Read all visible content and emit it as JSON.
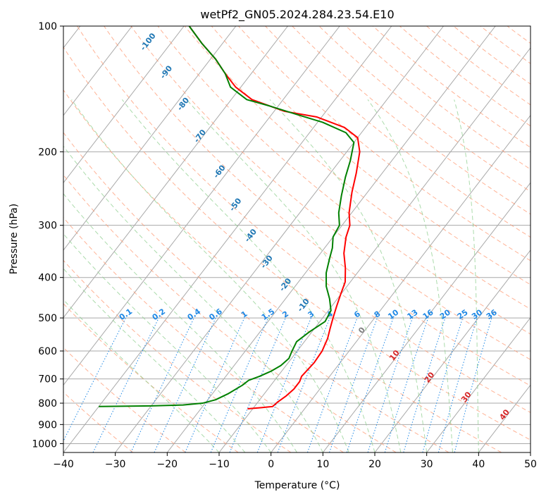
{
  "chart_data": {
    "type": "line",
    "title": "wetPf2_GN05.2024.284.23.54.E10",
    "xlabel": "Temperature (°C)",
    "ylabel": "Pressure (hPa)",
    "xlim": [
      -40,
      50
    ],
    "ylim": [
      1050,
      100
    ],
    "y_scale": "log",
    "x_ticks": [
      "−40",
      "−30",
      "−20",
      "−10",
      "0",
      "10",
      "20",
      "30",
      "40",
      "50"
    ],
    "y_ticks": [
      {
        "p": 100,
        "label": "100"
      },
      {
        "p": 200,
        "label": "200"
      },
      {
        "p": 300,
        "label": "300"
      },
      {
        "p": 400,
        "label": "400"
      },
      {
        "p": 500,
        "label": "500"
      },
      {
        "p": 600,
        "label": "600"
      },
      {
        "p": 700,
        "label": "700"
      },
      {
        "p": 800,
        "label": "800"
      },
      {
        "p": 900,
        "label": "900"
      },
      {
        "p": 1000,
        "label": "1000"
      }
    ],
    "grid": true,
    "colors": {
      "temperature": "#ff0000",
      "dewpoint": "#008000",
      "isotherm": "#a9a9a9",
      "dry_adiabat": "#ff9a73",
      "moist_adiabat": "#8fcf8f",
      "mixing_ratio": "#1e88e5",
      "theta_e_label": "#1f77b4",
      "temp_label": "#d62728",
      "zero_label": "#808080"
    },
    "series": [
      {
        "key": "temperature",
        "points": [
          [
            -11.0,
            825
          ],
          [
            -8.5,
            820
          ],
          [
            -6.5,
            815
          ],
          [
            -6.2,
            795
          ],
          [
            -5.5,
            770
          ],
          [
            -5.0,
            740
          ],
          [
            -5.0,
            710
          ],
          [
            -5.4,
            690
          ],
          [
            -5.2,
            665
          ],
          [
            -5.0,
            640
          ],
          [
            -5.2,
            600
          ],
          [
            -6.0,
            560
          ],
          [
            -7.0,
            530
          ],
          [
            -8.0,
            500
          ],
          [
            -9.0,
            470
          ],
          [
            -10.0,
            440
          ],
          [
            -11.0,
            410
          ],
          [
            -13.0,
            380
          ],
          [
            -15.5,
            350
          ],
          [
            -17.5,
            320
          ],
          [
            -18.5,
            300
          ],
          [
            -20.5,
            280
          ],
          [
            -23.0,
            250
          ],
          [
            -25.0,
            225
          ],
          [
            -27.5,
            200
          ],
          [
            -30.0,
            185
          ],
          [
            -34.0,
            175
          ],
          [
            -41.0,
            165
          ],
          [
            -48.0,
            160
          ],
          [
            -56.0,
            150
          ],
          [
            -61.0,
            140
          ],
          [
            -65.0,
            130
          ],
          [
            -69.0,
            120
          ],
          [
            -74.0,
            110
          ],
          [
            -79.0,
            100
          ]
        ]
      },
      {
        "key": "dewpoint",
        "points": [
          [
            -40.0,
            815
          ],
          [
            -30.0,
            812
          ],
          [
            -24.0,
            808
          ],
          [
            -20.5,
            800
          ],
          [
            -18.5,
            785
          ],
          [
            -17.0,
            760
          ],
          [
            -15.5,
            725
          ],
          [
            -15.0,
            705
          ],
          [
            -13.5,
            690
          ],
          [
            -12.0,
            670
          ],
          [
            -11.0,
            650
          ],
          [
            -10.5,
            625
          ],
          [
            -11.0,
            600
          ],
          [
            -11.5,
            570
          ],
          [
            -10.5,
            540
          ],
          [
            -9.0,
            510
          ],
          [
            -9.5,
            480
          ],
          [
            -11.5,
            450
          ],
          [
            -14.0,
            420
          ],
          [
            -16.0,
            390
          ],
          [
            -17.5,
            360
          ],
          [
            -18.5,
            340
          ],
          [
            -20.0,
            320
          ],
          [
            -20.5,
            300
          ],
          [
            -22.5,
            280
          ],
          [
            -24.5,
            255
          ],
          [
            -26.5,
            230
          ],
          [
            -28.0,
            210
          ],
          [
            -30.0,
            190
          ],
          [
            -33.0,
            180
          ],
          [
            -39.0,
            170
          ],
          [
            -45.0,
            163
          ],
          [
            -52.0,
            155
          ],
          [
            -57.0,
            150
          ],
          [
            -62.0,
            140
          ],
          [
            -65.0,
            130
          ],
          [
            -69.0,
            120
          ],
          [
            -74.0,
            110
          ],
          [
            -79.0,
            100
          ]
        ]
      }
    ],
    "mixing_ratio_labels": [
      "0.1",
      "0.2",
      "0.4",
      "0.6",
      "1",
      "1.5",
      "2",
      "3",
      "4",
      "6",
      "8",
      "10",
      "13",
      "16",
      "20",
      "25",
      "30",
      "36"
    ],
    "mixing_ratio_values": [
      0.1,
      0.2,
      0.4,
      0.6,
      1,
      1.5,
      2,
      3,
      4,
      6,
      8,
      10,
      13,
      16,
      20,
      25,
      30,
      36
    ],
    "theta_e_labels": [
      {
        "text": "-100",
        "t": -84,
        "p": 110
      },
      {
        "text": "-90",
        "t": -76,
        "p": 130
      },
      {
        "text": "-80",
        "t": -68,
        "p": 155
      },
      {
        "text": "-70",
        "t": -60,
        "p": 185
      },
      {
        "text": "-60",
        "t": -51,
        "p": 225
      },
      {
        "text": "-50",
        "t": -43,
        "p": 270
      },
      {
        "text": "-40",
        "t": -35.5,
        "p": 320
      },
      {
        "text": "-30",
        "t": -28.5,
        "p": 370
      },
      {
        "text": "-20",
        "t": -21.5,
        "p": 420
      },
      {
        "text": "-10",
        "t": -15,
        "p": 470
      }
    ],
    "temp_labels": [
      {
        "text": "0",
        "t": 0,
        "p": 540,
        "color": "zero_label"
      },
      {
        "text": "10",
        "t": 10,
        "p": 620,
        "color": "temp_label"
      },
      {
        "text": "20",
        "t": 20,
        "p": 700,
        "color": "temp_label"
      },
      {
        "text": "30",
        "t": 30,
        "p": 780,
        "color": "temp_label"
      },
      {
        "text": "40",
        "t": 40,
        "p": 860,
        "color": "temp_label"
      }
    ]
  }
}
